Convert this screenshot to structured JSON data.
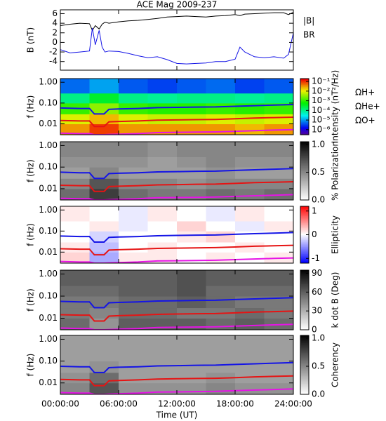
{
  "chart_data": [
    {
      "type": "line",
      "title": "ACE Mag 2009-237",
      "ylabel": "B (nT)",
      "x": [
        0,
        1,
        2,
        3,
        3.3,
        3.6,
        4,
        4.3,
        4.6,
        5,
        6,
        7,
        8,
        9,
        10,
        11,
        12,
        13,
        14,
        15,
        16,
        17,
        18,
        18.5,
        19,
        20,
        21,
        22,
        23,
        23.5,
        24
      ],
      "series": [
        {
          "name": "|B|",
          "color": "#000000",
          "values": [
            3.5,
            3.8,
            4.0,
            3.9,
            2.5,
            3.5,
            2.8,
            3.8,
            4.2,
            4.0,
            4.3,
            4.5,
            4.6,
            4.8,
            5.0,
            5.3,
            5.4,
            5.5,
            5.4,
            5.3,
            5.5,
            5.6,
            5.8,
            5.6,
            5.9,
            6.0,
            6.1,
            6.2,
            6.2,
            5.8,
            6.3
          ]
        },
        {
          "name": "BR",
          "color": "#1414e6",
          "values": [
            -1.5,
            -2.2,
            -2.0,
            -1.8,
            3.0,
            -0.5,
            2.5,
            -1.0,
            -2.0,
            -1.8,
            -1.9,
            -2.3,
            -2.8,
            -3.2,
            -3.0,
            -3.6,
            -4.4,
            -4.5,
            -4.4,
            -4.3,
            -4.0,
            -4.0,
            -3.5,
            -1.0,
            -2.0,
            -3.0,
            -3.2,
            -3.0,
            -3.3,
            -2.5,
            2.0
          ]
        }
      ],
      "xlim": [
        0,
        24
      ],
      "xticks": [
        0,
        6,
        12,
        18,
        24
      ],
      "ylim": [
        -5.8,
        6.8
      ],
      "yticks": [
        -4,
        -2,
        0,
        2,
        4,
        6
      ]
    },
    {
      "type": "heatmap",
      "ylabel": "f (Hz)",
      "ylog": true,
      "zlabel": "Intensity (nT²/Hz)",
      "colormap": "rainbow",
      "zlog": true,
      "xbins": [
        0,
        3,
        6,
        9,
        12,
        15,
        18,
        21,
        24
      ],
      "fbins": [
        0.003,
        0.01,
        0.03,
        0.1,
        0.3,
        1.5
      ],
      "z": [
        [
          0.03,
          0.08,
          0.03,
          0.03,
          0.03,
          0.03,
          0.02,
          0.03
        ],
        [
          0.008,
          0.02,
          0.008,
          0.006,
          0.006,
          0.008,
          0.006,
          0.008
        ],
        [
          0.001,
          0.003,
          0.001,
          0.0008,
          0.0008,
          0.001,
          0.0008,
          0.001
        ],
        [
          0.0001,
          0.0003,
          0.0001,
          8e-05,
          0.0001,
          0.0001,
          8e-05,
          0.0001
        ],
        [
          5e-06,
          1e-05,
          4e-06,
          3e-06,
          4e-06,
          5e-06,
          3e-06,
          4e-06
        ]
      ],
      "zlim": [
        3e-07,
        0.2
      ],
      "zticks": [
        {
          "value": 0.1,
          "label": "10⁻¹"
        },
        {
          "value": 0.01,
          "label": "10⁻²"
        },
        {
          "value": 0.001,
          "label": "10⁻³"
        },
        {
          "value": 0.0001,
          "label": "10⁻⁴"
        },
        {
          "value": 1e-05,
          "label": "10⁻⁵"
        },
        {
          "value": 1e-06,
          "label": "10⁻⁶"
        }
      ],
      "x": [
        0,
        2,
        3,
        3.5,
        4.5,
        5,
        6,
        8,
        10,
        12,
        14,
        16,
        18,
        20,
        22,
        24
      ],
      "series": [
        {
          "name": "ΩH+",
          "color": "#1414e6",
          "values": [
            0.058,
            0.055,
            0.055,
            0.03,
            0.03,
            0.05,
            0.052,
            0.055,
            0.06,
            0.062,
            0.064,
            0.065,
            0.07,
            0.075,
            0.08,
            0.085
          ]
        },
        {
          "name": "ΩHe+",
          "color": "#e61414",
          "values": [
            0.0145,
            0.0138,
            0.0138,
            0.0075,
            0.0075,
            0.0125,
            0.013,
            0.0138,
            0.015,
            0.0155,
            0.016,
            0.0163,
            0.0175,
            0.019,
            0.02,
            0.021
          ]
        },
        {
          "name": "ΩO+",
          "color": "#e614e6",
          "values": [
            0.0036,
            0.0034,
            0.0034,
            0.003,
            0.003,
            0.0031,
            0.0032,
            0.0034,
            0.0038,
            0.0039,
            0.004,
            0.0041,
            0.0044,
            0.0047,
            0.005,
            0.0053
          ]
        }
      ],
      "xlim": [
        0,
        24
      ],
      "xticks": [
        0,
        6,
        12,
        18,
        24
      ],
      "ylim": [
        0.003,
        1.5
      ],
      "yticks": [
        {
          "value": 1,
          "label": "1.00"
        },
        {
          "value": 0.1,
          "label": "0.10"
        },
        {
          "value": 0.01,
          "label": "0.01"
        }
      ]
    },
    {
      "type": "heatmap",
      "ylabel": "f (Hz)",
      "ylog": true,
      "zlabel": "% Polarization",
      "colormap": "gray",
      "xbins": [
        0,
        3,
        6,
        9,
        12,
        15,
        18,
        21,
        24
      ],
      "fbins": [
        0.003,
        0.01,
        0.03,
        0.1,
        0.3,
        1.5
      ],
      "z": [
        [
          0.6,
          0.8,
          0.6,
          0.55,
          0.55,
          0.6,
          0.55,
          0.6
        ],
        [
          0.5,
          0.7,
          0.5,
          0.5,
          0.45,
          0.5,
          0.5,
          0.5
        ],
        [
          0.4,
          0.5,
          0.4,
          0.4,
          0.4,
          0.45,
          0.4,
          0.4
        ],
        [
          0.45,
          0.45,
          0.45,
          0.4,
          0.45,
          0.5,
          0.45,
          0.45
        ],
        [
          0.5,
          0.5,
          0.5,
          0.45,
          0.5,
          0.5,
          0.5,
          0.5
        ]
      ],
      "zlim": [
        0,
        1.05
      ],
      "zticks": [
        {
          "value": 0,
          "label": "0.0"
        },
        {
          "value": 0.5,
          "label": "0.5"
        },
        {
          "value": 1,
          "label": "1.0"
        }
      ],
      "x": [
        0,
        2,
        3,
        3.5,
        4.5,
        5,
        6,
        8,
        10,
        12,
        14,
        16,
        18,
        20,
        22,
        24
      ],
      "series": [
        {
          "color": "#1414e6",
          "values": [
            0.058,
            0.055,
            0.055,
            0.03,
            0.03,
            0.05,
            0.052,
            0.055,
            0.06,
            0.062,
            0.064,
            0.065,
            0.07,
            0.075,
            0.08,
            0.085
          ]
        },
        {
          "color": "#e61414",
          "values": [
            0.0145,
            0.0138,
            0.0138,
            0.0075,
            0.0075,
            0.0125,
            0.013,
            0.0138,
            0.015,
            0.0155,
            0.016,
            0.0163,
            0.0175,
            0.019,
            0.02,
            0.021
          ]
        },
        {
          "color": "#e614e6",
          "values": [
            0.0036,
            0.0034,
            0.0034,
            0.003,
            0.003,
            0.0031,
            0.0032,
            0.0034,
            0.0038,
            0.0039,
            0.004,
            0.0041,
            0.0044,
            0.0047,
            0.005,
            0.0053
          ]
        }
      ],
      "xlim": [
        0,
        24
      ],
      "xticks": [
        0,
        6,
        12,
        18,
        24
      ],
      "ylim": [
        0.003,
        1.5
      ],
      "yticks": [
        {
          "value": 1,
          "label": "1.00"
        },
        {
          "value": 0.1,
          "label": "0.10"
        },
        {
          "value": 0.01,
          "label": "0.01"
        }
      ]
    },
    {
      "type": "heatmap",
      "ylabel": "f (Hz)",
      "ylog": true,
      "zlabel": "Ellipticity",
      "colormap": "bwr",
      "xbins": [
        0,
        3,
        6,
        9,
        12,
        15,
        18,
        21,
        24
      ],
      "fbins": [
        0.003,
        0.01,
        0.03,
        0.1,
        0.3,
        1.5
      ],
      "z": [
        [
          0.2,
          -0.4,
          0.1,
          0.1,
          0,
          0.1,
          0,
          0.1
        ],
        [
          0.1,
          -0.3,
          0,
          0.1,
          0,
          0,
          0.1,
          0
        ],
        [
          0,
          -0.2,
          0,
          0,
          0.1,
          0.2,
          0,
          0
        ],
        [
          0,
          0.1,
          -0.1,
          0,
          0.2,
          0,
          -0.1,
          0.1
        ],
        [
          0.1,
          0,
          -0.1,
          0.1,
          0,
          -0.1,
          0.1,
          0
        ]
      ],
      "zlim": [
        -1.2,
        1.2
      ],
      "zticks": [
        1,
        0,
        -1
      ],
      "x": [
        0,
        2,
        3,
        3.5,
        4.5,
        5,
        6,
        8,
        10,
        12,
        14,
        16,
        18,
        20,
        22,
        24
      ],
      "series": [
        {
          "color": "#1414e6",
          "values": [
            0.058,
            0.055,
            0.055,
            0.03,
            0.03,
            0.05,
            0.052,
            0.055,
            0.06,
            0.062,
            0.064,
            0.065,
            0.07,
            0.075,
            0.08,
            0.085
          ]
        },
        {
          "color": "#e61414",
          "values": [
            0.0145,
            0.0138,
            0.0138,
            0.0075,
            0.0075,
            0.0125,
            0.013,
            0.0138,
            0.015,
            0.0155,
            0.016,
            0.0163,
            0.0175,
            0.019,
            0.02,
            0.021
          ]
        },
        {
          "color": "#e614e6",
          "values": [
            0.0036,
            0.0034,
            0.0034,
            0.003,
            0.003,
            0.0031,
            0.0032,
            0.0034,
            0.0038,
            0.0039,
            0.004,
            0.0041,
            0.0044,
            0.0047,
            0.005,
            0.0053
          ]
        }
      ],
      "xlim": [
        0,
        24
      ],
      "xticks": [
        0,
        6,
        12,
        18,
        24
      ],
      "ylim": [
        0.003,
        1.5
      ],
      "yticks": [
        {
          "value": 1,
          "label": "1.00"
        },
        {
          "value": 0.1,
          "label": "0.10"
        },
        {
          "value": 0.01,
          "label": "0.01"
        }
      ]
    },
    {
      "type": "heatmap",
      "ylabel": "f (Hz)",
      "ylog": true,
      "zlabel": "k dot B (Deg)",
      "colormap": "gray",
      "xbins": [
        0,
        3,
        6,
        9,
        12,
        15,
        18,
        21,
        24
      ],
      "fbins": [
        0.003,
        0.01,
        0.03,
        0.1,
        0.3,
        1.5
      ],
      "z": [
        [
          55,
          40,
          60,
          60,
          60,
          55,
          60,
          55
        ],
        [
          50,
          45,
          55,
          55,
          50,
          50,
          55,
          50
        ],
        [
          50,
          50,
          55,
          55,
          60,
          55,
          50,
          50
        ],
        [
          55,
          55,
          60,
          60,
          65,
          55,
          55,
          55
        ],
        [
          60,
          60,
          60,
          60,
          65,
          60,
          60,
          60
        ]
      ],
      "zlim": [
        0,
        95
      ],
      "zticks": [
        0,
        30,
        60,
        90
      ],
      "x": [
        0,
        2,
        3,
        3.5,
        4.5,
        5,
        6,
        8,
        10,
        12,
        14,
        16,
        18,
        20,
        22,
        24
      ],
      "series": [
        {
          "color": "#1414e6",
          "values": [
            0.058,
            0.055,
            0.055,
            0.03,
            0.03,
            0.05,
            0.052,
            0.055,
            0.06,
            0.062,
            0.064,
            0.065,
            0.07,
            0.075,
            0.08,
            0.085
          ]
        },
        {
          "color": "#e61414",
          "values": [
            0.0145,
            0.0138,
            0.0138,
            0.0075,
            0.0075,
            0.0125,
            0.013,
            0.0138,
            0.015,
            0.0155,
            0.016,
            0.0163,
            0.0175,
            0.019,
            0.02,
            0.021
          ]
        },
        {
          "color": "#e614e6",
          "values": [
            0.0036,
            0.0034,
            0.0034,
            0.003,
            0.003,
            0.0031,
            0.0032,
            0.0034,
            0.0038,
            0.0039,
            0.004,
            0.0041,
            0.0044,
            0.0047,
            0.005,
            0.0053
          ]
        }
      ],
      "xlim": [
        0,
        24
      ],
      "xticks": [
        0,
        6,
        12,
        18,
        24
      ],
      "ylim": [
        0.003,
        1.5
      ],
      "yticks": [
        {
          "value": 1,
          "label": "1.00"
        },
        {
          "value": 0.1,
          "label": "0.10"
        },
        {
          "value": 0.01,
          "label": "0.01"
        }
      ]
    },
    {
      "type": "heatmap",
      "ylabel": "f (Hz)",
      "ylog": true,
      "zlabel": "Coherency",
      "colormap": "gray",
      "xlabel": "Time (UT)",
      "xbins": [
        0,
        3,
        6,
        9,
        12,
        15,
        18,
        21,
        24
      ],
      "fbins": [
        0.003,
        0.01,
        0.03,
        0.1,
        0.3,
        1.5
      ],
      "z": [
        [
          0.5,
          0.7,
          0.45,
          0.45,
          0.45,
          0.5,
          0.45,
          0.45
        ],
        [
          0.45,
          0.6,
          0.4,
          0.4,
          0.4,
          0.45,
          0.4,
          0.4
        ],
        [
          0.4,
          0.45,
          0.4,
          0.4,
          0.4,
          0.4,
          0.4,
          0.4
        ],
        [
          0.4,
          0.4,
          0.4,
          0.4,
          0.4,
          0.4,
          0.4,
          0.4
        ],
        [
          0.4,
          0.4,
          0.4,
          0.4,
          0.4,
          0.4,
          0.4,
          0.4
        ]
      ],
      "zlim": [
        0,
        1.05
      ],
      "zticks": [
        {
          "value": 0,
          "label": "0.0"
        },
        {
          "value": 0.5,
          "label": "0.5"
        },
        {
          "value": 1,
          "label": "1.0"
        }
      ],
      "x": [
        0,
        2,
        3,
        3.5,
        4.5,
        5,
        6,
        8,
        10,
        12,
        14,
        16,
        18,
        20,
        22,
        24
      ],
      "series": [
        {
          "color": "#1414e6",
          "values": [
            0.058,
            0.055,
            0.055,
            0.03,
            0.03,
            0.05,
            0.052,
            0.055,
            0.06,
            0.062,
            0.064,
            0.065,
            0.07,
            0.075,
            0.08,
            0.085
          ]
        },
        {
          "color": "#e61414",
          "values": [
            0.0145,
            0.0138,
            0.0138,
            0.0075,
            0.0075,
            0.0125,
            0.013,
            0.0138,
            0.015,
            0.0155,
            0.016,
            0.0163,
            0.0175,
            0.019,
            0.02,
            0.021
          ]
        },
        {
          "color": "#e614e6",
          "values": [
            0.0036,
            0.0034,
            0.0034,
            0.003,
            0.003,
            0.0031,
            0.0032,
            0.0034,
            0.0038,
            0.0039,
            0.004,
            0.0041,
            0.0044,
            0.0047,
            0.005,
            0.0053
          ]
        }
      ],
      "xlim": [
        0,
        24
      ],
      "xticks": [
        {
          "value": 0,
          "label": "00:00:00"
        },
        {
          "value": 6,
          "label": "06:00:00"
        },
        {
          "value": 12,
          "label": "12:00:00"
        },
        {
          "value": 18,
          "label": "18:00:00"
        },
        {
          "value": 24,
          "label": "24:00:00"
        }
      ],
      "ylim": [
        0.003,
        1.5
      ],
      "yticks": [
        {
          "value": 1,
          "label": "1.00"
        },
        {
          "value": 0.1,
          "label": "0.10"
        },
        {
          "value": 0.01,
          "label": "0.01"
        }
      ]
    }
  ]
}
